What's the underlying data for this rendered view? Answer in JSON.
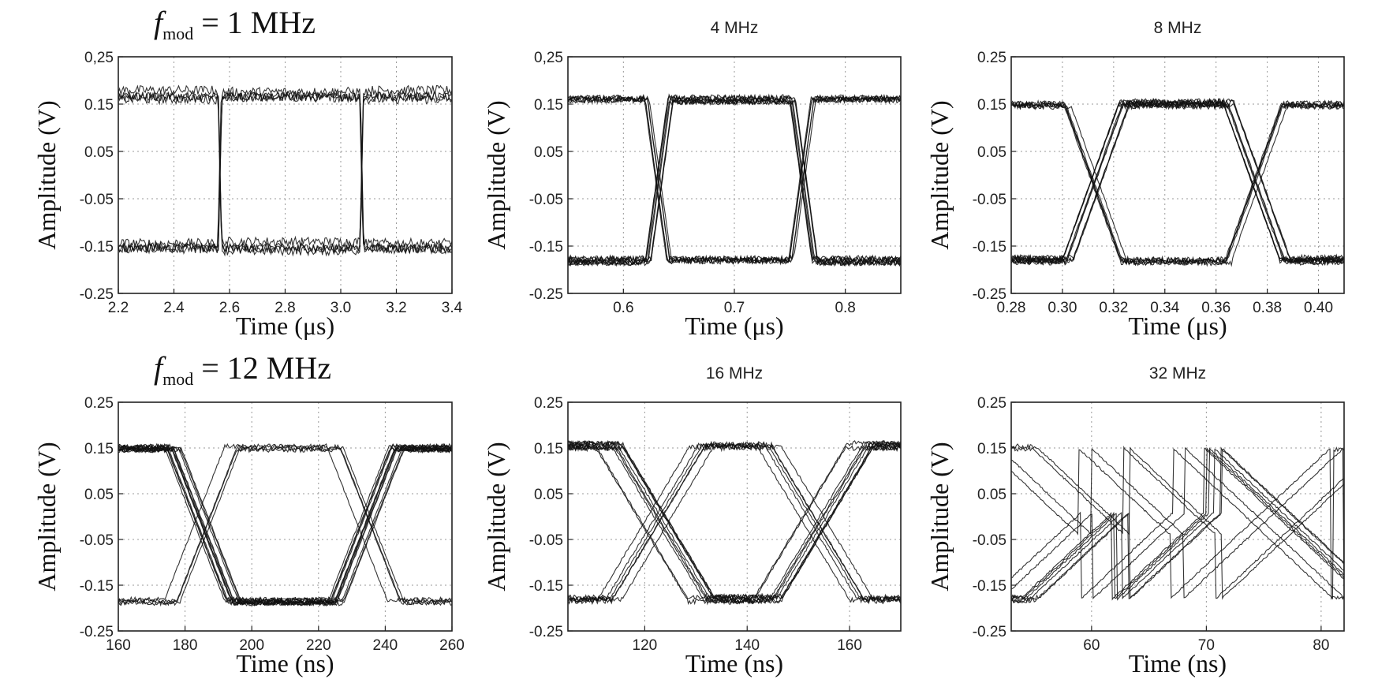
{
  "chart_data": [
    {
      "type": "line",
      "title": "f_mod = 1 MHz",
      "title_style": "serif-fmod",
      "title_parts": {
        "symbol": "f",
        "subscript": "mod",
        "rest": " = 1 MHz"
      },
      "xlabel": "Time (μs)",
      "ylabel": "Amplitude (V)",
      "xlim": [
        2.2,
        3.4
      ],
      "ylim": [
        -0.25,
        0.25
      ],
      "xticks": [
        "2.2",
        "2.4",
        "2.6",
        "2.8",
        "3.0",
        "3.2",
        "3.4"
      ],
      "xtick_values": [
        2.2,
        2.4,
        2.6,
        2.8,
        3.0,
        3.2,
        3.4
      ],
      "yticks": [
        "0,25",
        "0.15",
        "0.05",
        "-0.05",
        "-0.15",
        "-0.25"
      ],
      "ytick_values": [
        0.25,
        0.15,
        0.05,
        -0.05,
        -0.15,
        -0.25
      ],
      "grid": true,
      "high_level": 0.17,
      "low_level": -0.15,
      "noise": 0.02,
      "transitions": [
        2.565,
        3.075
      ],
      "transition_width": 0.012,
      "traces": 8
    },
    {
      "type": "line",
      "title": "4 MHz",
      "xlabel": "Time (μs)",
      "ylabel": "Amplitude (V)",
      "xlim": [
        0.55,
        0.85
      ],
      "ylim": [
        -0.25,
        0.25
      ],
      "xticks": [
        "0.6",
        "0.7",
        "0.8"
      ],
      "xtick_values": [
        0.6,
        0.7,
        0.8
      ],
      "yticks": [
        "0,25",
        "0.15",
        "0.05",
        "-0.05",
        "-0.15",
        "-0.25"
      ],
      "ytick_values": [
        0.25,
        0.15,
        0.05,
        -0.05,
        -0.15,
        -0.25
      ],
      "grid": true,
      "high_level": 0.16,
      "low_level": -0.18,
      "noise": 0.012,
      "transitions": [
        0.632,
        0.762
      ],
      "transition_width": 0.02,
      "traces": 14
    },
    {
      "type": "line",
      "title": "8 MHz",
      "xlabel": "Time (μs)",
      "ylabel": "Amplitude (V)",
      "xlim": [
        0.28,
        0.41
      ],
      "ylim": [
        -0.25,
        0.25
      ],
      "xticks": [
        "0.28",
        "0.30",
        "0.32",
        "0.34",
        "0.36",
        "0.38",
        "0.40"
      ],
      "xtick_values": [
        0.28,
        0.3,
        0.32,
        0.34,
        0.36,
        0.38,
        0.4
      ],
      "yticks": [
        "0.25",
        "0.15",
        "0.05",
        "-0.05",
        "-0.15",
        "-0.25"
      ],
      "ytick_values": [
        0.25,
        0.15,
        0.05,
        -0.05,
        -0.15,
        -0.25
      ],
      "grid": true,
      "high_level": 0.15,
      "low_level": -0.18,
      "noise": 0.012,
      "transitions": [
        0.313,
        0.376
      ],
      "transition_width": 0.022,
      "traces": 16
    },
    {
      "type": "line",
      "title": "f_mod = 12 MHz",
      "title_style": "serif-fmod",
      "title_parts": {
        "symbol": "f",
        "subscript": "mod",
        "rest": " = 12 MHz"
      },
      "xlabel": "Time (ns)",
      "ylabel": "Amplitude (V)",
      "xlim": [
        160,
        260
      ],
      "ylim": [
        -0.25,
        0.25
      ],
      "xticks": [
        "160",
        "180",
        "200",
        "220",
        "240",
        "260"
      ],
      "xtick_values": [
        160,
        180,
        200,
        220,
        240,
        260
      ],
      "yticks": [
        "0.25",
        "0.15",
        "0.05",
        "-0.05",
        "-0.15",
        "-0.25"
      ],
      "ytick_values": [
        0.25,
        0.15,
        0.05,
        -0.05,
        -0.15,
        -0.25
      ],
      "grid": true,
      "high_level": 0.15,
      "low_level": -0.185,
      "noise": 0.01,
      "transitions": [
        185,
        234
      ],
      "transition_width": 18,
      "traces": 16
    },
    {
      "type": "line",
      "title": "16 MHz",
      "xlabel": "Time (ns)",
      "ylabel": "Amplitude (V)",
      "xlim": [
        105,
        170
      ],
      "ylim": [
        -0.25,
        0.25
      ],
      "xticks": [
        "120",
        "140",
        "160"
      ],
      "xtick_values": [
        120,
        140,
        160
      ],
      "yticks": [
        "0.25",
        "0.15",
        "0.05",
        "-0.05",
        "-0.15",
        "-0.25"
      ],
      "ytick_values": [
        0.25,
        0.15,
        0.05,
        -0.05,
        -0.15,
        -0.25
      ],
      "grid": true,
      "high_level": 0.155,
      "low_level": -0.18,
      "noise": 0.012,
      "transitions": [
        122,
        153
      ],
      "transition_width": 18,
      "traces": 16
    },
    {
      "type": "line",
      "title": "32 MHz",
      "xlabel": "Time (ns)",
      "ylabel": "Amplitude (V)",
      "xlim": [
        53,
        82
      ],
      "ylim": [
        -0.25,
        0.25
      ],
      "xticks": [
        "60",
        "70",
        "80"
      ],
      "xtick_values": [
        60,
        70,
        80
      ],
      "yticks": [
        "0.25",
        "0.15",
        "0.05",
        "-0.05",
        "-0.15",
        "-0.25"
      ],
      "ytick_values": [
        0.25,
        0.15,
        0.05,
        -0.05,
        -0.15,
        -0.25
      ],
      "grid": true,
      "high_level": 0.15,
      "low_level": -0.18,
      "noise": 0.01,
      "transitions": [
        60,
        68,
        76
      ],
      "transition_width": 14,
      "traces": 12
    }
  ]
}
